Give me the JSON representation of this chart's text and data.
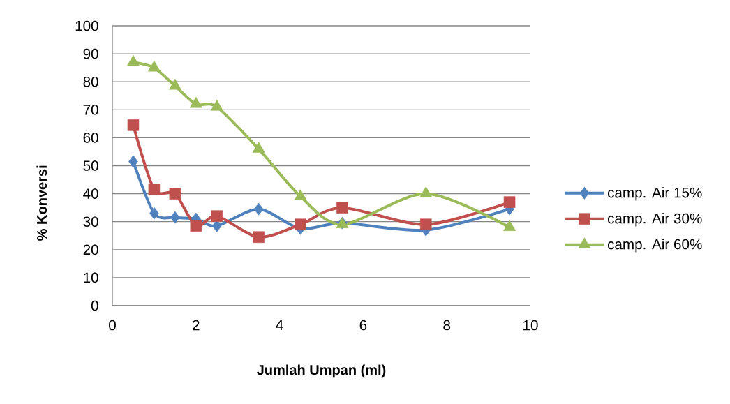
{
  "chart_data": {
    "type": "line",
    "xlabel": "Jumlah Umpan (ml)",
    "ylabel": "% Konversi",
    "x": [
      0.5,
      1,
      1.5,
      2,
      2.5,
      3.5,
      4.5,
      5.5,
      7.5,
      9.5
    ],
    "xlim": [
      0,
      10
    ],
    "ylim": [
      0,
      100
    ],
    "xticks": [
      0,
      2,
      4,
      6,
      8,
      10
    ],
    "yticks": [
      0,
      10,
      20,
      30,
      40,
      50,
      60,
      70,
      80,
      90,
      100
    ],
    "grid": "y",
    "legend": "right",
    "line_style": "solid",
    "series": [
      {
        "name": "camp. Air 15%",
        "color": "#4f81bd",
        "marker": "diamond",
        "values": [
          51.5,
          33,
          31.5,
          31,
          28.5,
          34.5,
          27.5,
          29.5,
          27,
          34.5
        ]
      },
      {
        "name": "camp. Air 30%",
        "color": "#c0504d",
        "marker": "square",
        "values": [
          64.5,
          41.5,
          40,
          28.5,
          32,
          24.5,
          29,
          35,
          29,
          37
        ]
      },
      {
        "name": "camp. Air 60%",
        "color": "#9bbb59",
        "marker": "triangle",
        "values": [
          87,
          85,
          78.5,
          72,
          71,
          56,
          39,
          29,
          40,
          28
        ]
      }
    ]
  }
}
